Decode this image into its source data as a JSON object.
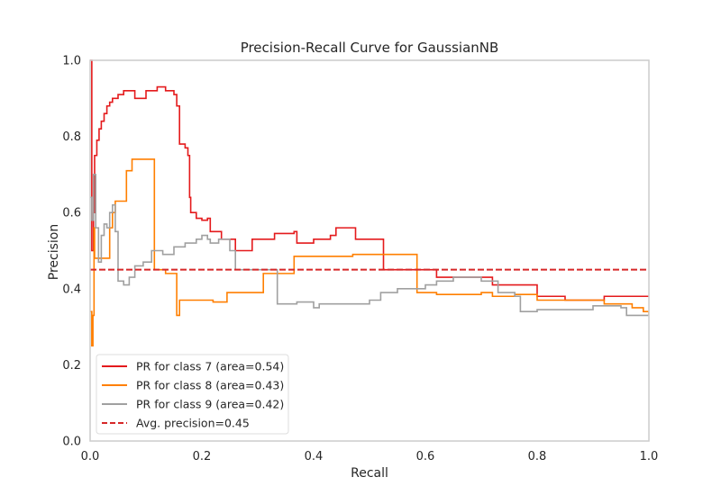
{
  "chart_data": {
    "type": "line",
    "title": "Precision-Recall Curve for GaussianNB",
    "xlabel": "Recall",
    "ylabel": "Precision",
    "xlim": [
      0.0,
      1.0
    ],
    "ylim": [
      0.0,
      1.0
    ],
    "x_ticks": [
      "0.0",
      "0.2",
      "0.4",
      "0.6",
      "0.8",
      "1.0"
    ],
    "y_ticks": [
      "0.0",
      "0.2",
      "0.4",
      "0.6",
      "0.8",
      "1.0"
    ],
    "grid": false,
    "legend_position": "lower-left",
    "series": [
      {
        "name": "PR for class 7 (area=0.54)",
        "color": "#e41a1c",
        "style": "step",
        "points": [
          [
            0.0,
            1.0
          ],
          [
            0.003,
            0.5
          ],
          [
            0.006,
            0.6
          ],
          [
            0.008,
            0.75
          ],
          [
            0.012,
            0.79
          ],
          [
            0.016,
            0.82
          ],
          [
            0.02,
            0.84
          ],
          [
            0.025,
            0.86
          ],
          [
            0.03,
            0.88
          ],
          [
            0.035,
            0.89
          ],
          [
            0.04,
            0.9
          ],
          [
            0.05,
            0.91
          ],
          [
            0.06,
            0.92
          ],
          [
            0.08,
            0.9
          ],
          [
            0.1,
            0.92
          ],
          [
            0.12,
            0.93
          ],
          [
            0.135,
            0.92
          ],
          [
            0.145,
            0.92
          ],
          [
            0.15,
            0.91
          ],
          [
            0.155,
            0.88
          ],
          [
            0.16,
            0.86
          ],
          [
            0.16,
            0.78
          ],
          [
            0.17,
            0.77
          ],
          [
            0.175,
            0.75
          ],
          [
            0.178,
            0.64
          ],
          [
            0.18,
            0.6
          ],
          [
            0.19,
            0.585
          ],
          [
            0.2,
            0.58
          ],
          [
            0.21,
            0.585
          ],
          [
            0.215,
            0.55
          ],
          [
            0.235,
            0.53
          ],
          [
            0.26,
            0.53
          ],
          [
            0.26,
            0.5
          ],
          [
            0.29,
            0.5
          ],
          [
            0.29,
            0.53
          ],
          [
            0.33,
            0.545
          ],
          [
            0.365,
            0.55
          ],
          [
            0.37,
            0.52
          ],
          [
            0.4,
            0.53
          ],
          [
            0.43,
            0.54
          ],
          [
            0.44,
            0.56
          ],
          [
            0.475,
            0.56
          ],
          [
            0.475,
            0.53
          ],
          [
            0.525,
            0.53
          ],
          [
            0.525,
            0.45
          ],
          [
            0.59,
            0.45
          ],
          [
            0.62,
            0.43
          ],
          [
            0.66,
            0.43
          ],
          [
            0.71,
            0.43
          ],
          [
            0.72,
            0.41
          ],
          [
            0.78,
            0.41
          ],
          [
            0.8,
            0.38
          ],
          [
            0.85,
            0.37
          ],
          [
            0.92,
            0.38
          ],
          [
            1.0,
            0.38
          ]
        ]
      },
      {
        "name": "PR for class 8 (area=0.43)",
        "color": "#ff7f00",
        "style": "step",
        "points": [
          [
            0.0,
            0.34
          ],
          [
            0.003,
            0.25
          ],
          [
            0.005,
            0.33
          ],
          [
            0.007,
            0.56
          ],
          [
            0.008,
            0.48
          ],
          [
            0.035,
            0.48
          ],
          [
            0.035,
            0.56
          ],
          [
            0.04,
            0.6
          ],
          [
            0.045,
            0.63
          ],
          [
            0.065,
            0.63
          ],
          [
            0.065,
            0.71
          ],
          [
            0.075,
            0.74
          ],
          [
            0.115,
            0.74
          ],
          [
            0.115,
            0.45
          ],
          [
            0.135,
            0.44
          ],
          [
            0.155,
            0.43
          ],
          [
            0.155,
            0.33
          ],
          [
            0.16,
            0.37
          ],
          [
            0.22,
            0.37
          ],
          [
            0.22,
            0.365
          ],
          [
            0.245,
            0.365
          ],
          [
            0.245,
            0.39
          ],
          [
            0.31,
            0.39
          ],
          [
            0.31,
            0.44
          ],
          [
            0.365,
            0.44
          ],
          [
            0.365,
            0.485
          ],
          [
            0.47,
            0.485
          ],
          [
            0.47,
            0.49
          ],
          [
            0.57,
            0.49
          ],
          [
            0.585,
            0.39
          ],
          [
            0.62,
            0.385
          ],
          [
            0.66,
            0.385
          ],
          [
            0.7,
            0.39
          ],
          [
            0.72,
            0.38
          ],
          [
            0.74,
            0.38
          ],
          [
            0.76,
            0.385
          ],
          [
            0.79,
            0.385
          ],
          [
            0.8,
            0.37
          ],
          [
            0.86,
            0.37
          ],
          [
            0.92,
            0.36
          ],
          [
            0.96,
            0.36
          ],
          [
            0.97,
            0.35
          ],
          [
            0.99,
            0.34
          ],
          [
            1.0,
            0.33
          ]
        ]
      },
      {
        "name": "PR for class 9 (area=0.42)",
        "color": "#a0a0a0",
        "style": "step",
        "points": [
          [
            0.0,
            0.64
          ],
          [
            0.003,
            0.58
          ],
          [
            0.006,
            0.7
          ],
          [
            0.01,
            0.56
          ],
          [
            0.015,
            0.47
          ],
          [
            0.02,
            0.54
          ],
          [
            0.025,
            0.57
          ],
          [
            0.03,
            0.56
          ],
          [
            0.035,
            0.6
          ],
          [
            0.04,
            0.62
          ],
          [
            0.045,
            0.55
          ],
          [
            0.05,
            0.42
          ],
          [
            0.06,
            0.41
          ],
          [
            0.07,
            0.43
          ],
          [
            0.08,
            0.46
          ],
          [
            0.095,
            0.47
          ],
          [
            0.11,
            0.5
          ],
          [
            0.13,
            0.49
          ],
          [
            0.15,
            0.51
          ],
          [
            0.17,
            0.52
          ],
          [
            0.19,
            0.53
          ],
          [
            0.2,
            0.54
          ],
          [
            0.21,
            0.53
          ],
          [
            0.215,
            0.52
          ],
          [
            0.23,
            0.53
          ],
          [
            0.25,
            0.5
          ],
          [
            0.26,
            0.45
          ],
          [
            0.3,
            0.45
          ],
          [
            0.33,
            0.45
          ],
          [
            0.335,
            0.36
          ],
          [
            0.37,
            0.365
          ],
          [
            0.4,
            0.35
          ],
          [
            0.41,
            0.36
          ],
          [
            0.44,
            0.36
          ],
          [
            0.5,
            0.37
          ],
          [
            0.52,
            0.39
          ],
          [
            0.55,
            0.4
          ],
          [
            0.6,
            0.41
          ],
          [
            0.62,
            0.42
          ],
          [
            0.65,
            0.43
          ],
          [
            0.7,
            0.42
          ],
          [
            0.73,
            0.39
          ],
          [
            0.76,
            0.38
          ],
          [
            0.77,
            0.34
          ],
          [
            0.8,
            0.345
          ],
          [
            0.9,
            0.355
          ],
          [
            0.95,
            0.35
          ],
          [
            0.96,
            0.33
          ],
          [
            1.0,
            0.33
          ]
        ]
      },
      {
        "name": "Avg. precision=0.45",
        "color": "#d62728",
        "style": "dashed",
        "points": [
          [
            0.0,
            0.45
          ],
          [
            1.0,
            0.45
          ]
        ]
      }
    ]
  }
}
